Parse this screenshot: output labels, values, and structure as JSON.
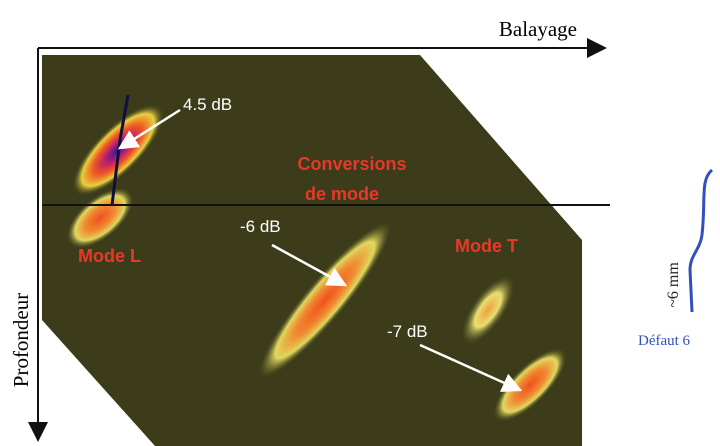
{
  "axes": {
    "horizontal": "Balayage",
    "vertical": "Profondeur"
  },
  "scan_labels": {
    "peak_top": "4.5 dB",
    "conversions_line1": "Conversions",
    "conversions_line2": "de mode",
    "mode_l": "Mode L",
    "peak_middle": "-6 dB",
    "mode_t": "Mode T",
    "peak_bottom": "-7 dB"
  },
  "defect": {
    "size": "~6 mm",
    "name": "Défaut 6"
  }
}
